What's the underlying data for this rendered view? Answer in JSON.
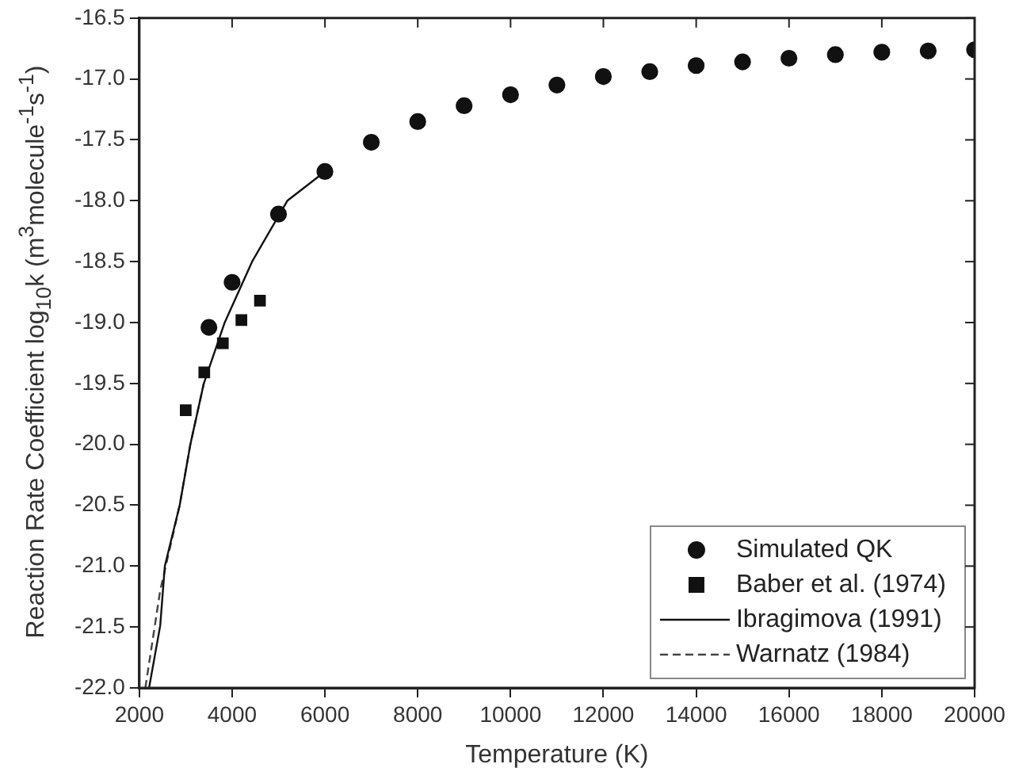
{
  "chart_data": {
    "type": "scatter",
    "xlabel": "Temperature (K)",
    "ylabel": "Reaction Rate Coefficient log$_{10}$k (m$^{3}$molecule$^{-1}$s$^{-1}$)",
    "xlim": [
      2000,
      20000
    ],
    "xticks": [
      2000,
      4000,
      6000,
      8000,
      10000,
      12000,
      14000,
      16000,
      18000,
      20000
    ],
    "ylim": [
      -22.0,
      -16.5
    ],
    "yticks": [
      {
        "value": -22,
        "label": "-22.0"
      },
      {
        "value": -21.5,
        "label": "-21.5"
      },
      {
        "value": -21,
        "label": "-21.0"
      },
      {
        "value": -20.5,
        "label": "-20.5"
      },
      {
        "value": -20,
        "label": "-20.0"
      },
      {
        "value": -19.5,
        "label": "-19.5"
      },
      {
        "value": -19,
        "label": "-19.0"
      },
      {
        "value": -18.5,
        "label": "-18.5"
      },
      {
        "value": -18,
        "label": "-18.0"
      },
      {
        "value": -17.5,
        "label": "-17.5"
      },
      {
        "value": -17,
        "label": "-17.0"
      },
      {
        "value": -16.5,
        "label": "-16.5"
      }
    ],
    "grid": false,
    "legend": "bottom right",
    "series": [
      {
        "name": "Simulated QK",
        "marker": "circle",
        "color": "#111111",
        "x": [
          3500,
          4000,
          5000,
          6000,
          7000,
          8000,
          9000,
          10000,
          11000,
          12000,
          13000,
          14000,
          15000,
          16000,
          17000,
          18000,
          19000,
          20000
        ],
        "values": [
          -19.04,
          -18.67,
          -18.11,
          -17.76,
          -17.52,
          -17.35,
          -17.22,
          -17.13,
          -17.05,
          -16.98,
          -16.94,
          -16.89,
          -16.86,
          -16.83,
          -16.8,
          -16.78,
          -16.77,
          -16.76
        ]
      },
      {
        "name": "Baber et al. (1974)",
        "marker": "square",
        "color": "#111111",
        "x": [
          3000,
          3400,
          3800,
          4200,
          4600
        ],
        "values": [
          -19.72,
          -19.41,
          -19.17,
          -18.98,
          -18.82
        ]
      },
      {
        "name": "Ibragimova (1991)",
        "type": "line",
        "line_style": "solid",
        "color": "#111111",
        "x": [
          2210,
          2450,
          2550,
          2870,
          3100,
          3390,
          3840,
          4430,
          5190,
          6000
        ],
        "values": [
          -22.0,
          -21.49,
          -21.0,
          -20.5,
          -20.0,
          -19.5,
          -19.0,
          -18.5,
          -18.0,
          -17.76
        ]
      },
      {
        "name": "Warnatz (1984)",
        "type": "line",
        "line_style": "dashed",
        "color": "#444444",
        "x": [
          2130,
          2450,
          2870,
          3100,
          3390
        ],
        "values": [
          -22.0,
          -21.2,
          -20.5,
          -20.0,
          -19.5
        ]
      }
    ]
  }
}
